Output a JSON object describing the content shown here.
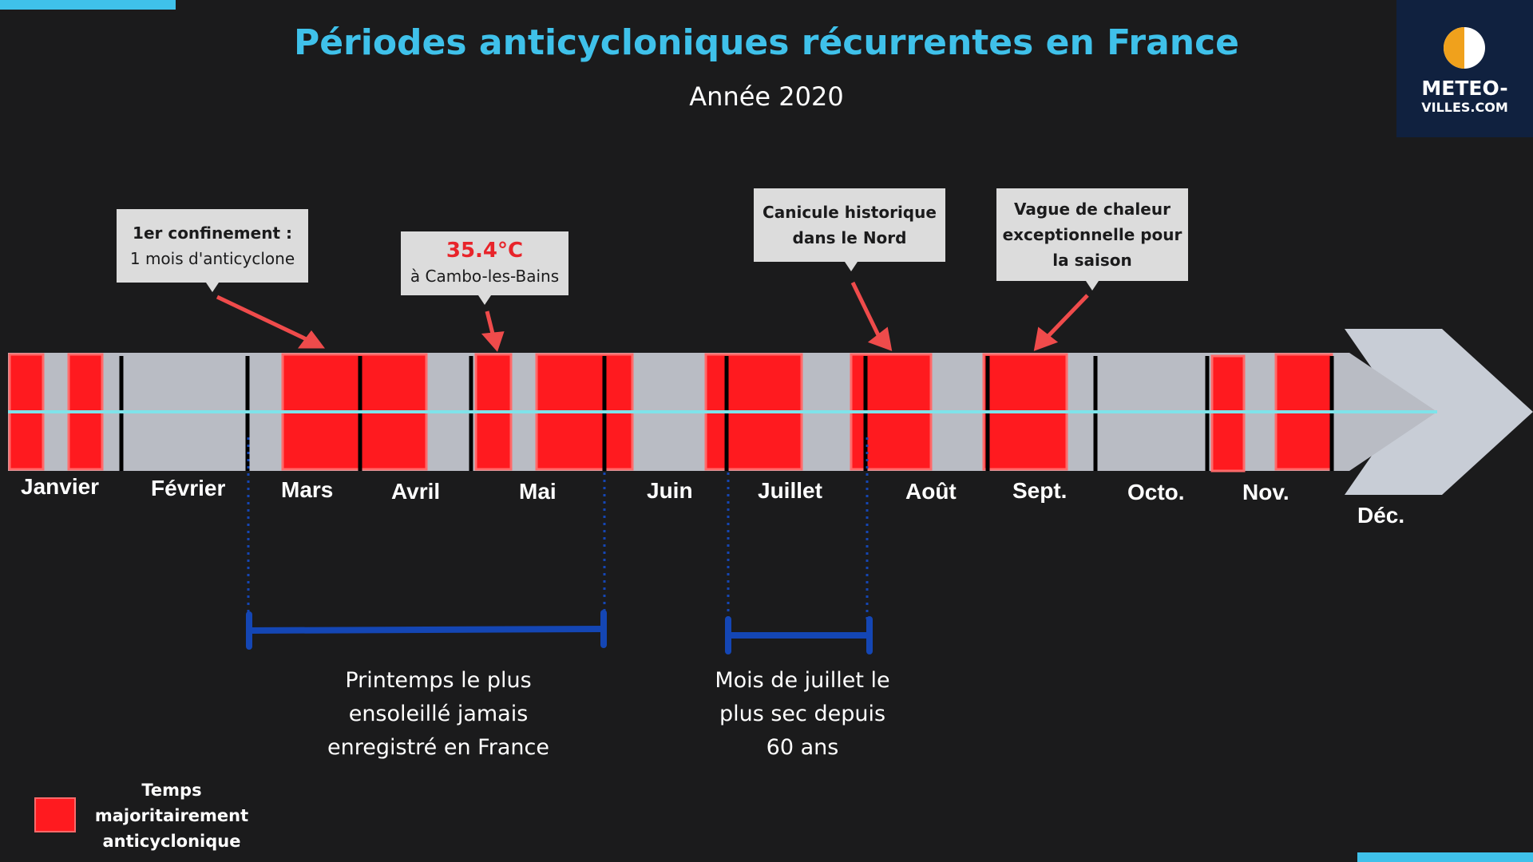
{
  "header": {
    "title": "Périodes anticycloniques récurrentes en France",
    "subtitle": "Année 2020"
  },
  "logo": {
    "line1": "METEO-",
    "line2": "VILLES.COM"
  },
  "colors": {
    "accent": "#3fc1ea",
    "anticyclone": "#ff1a1f",
    "highlight_bracket": "#1446b4",
    "timeline": "#b9bcc4",
    "callout_bg": "#dcdcdc",
    "arrow": "#ef4b4b"
  },
  "months": [
    "Janvier",
    "Février",
    "Mars",
    "Avril",
    "Mai",
    "Juin",
    "Juillet",
    "Août",
    "Sept.",
    "Octo.",
    "Nov.",
    "Déc."
  ],
  "callouts": {
    "confinement": {
      "line1": "1er confinement :",
      "line2": "1 mois d'anticyclone"
    },
    "temperature": {
      "value": "35.4°C",
      "place": "à Cambo-les-Bains"
    },
    "canicule": {
      "line1": "Canicule historique",
      "line2": "dans le Nord"
    },
    "vague": {
      "line1": "Vague de chaleur",
      "line2": "exceptionnelle pour",
      "line3": "la saison"
    }
  },
  "notes": {
    "printemps": {
      "line1": "Printemps le plus",
      "line2": "ensoleillé jamais",
      "line3": "enregistré en France"
    },
    "juillet": {
      "line1": "Mois de juillet le",
      "line2": "plus sec depuis",
      "line3": "60 ans"
    }
  },
  "legend": {
    "line1": "Temps",
    "line2": "majoritairement",
    "line3": "anticyclonique"
  }
}
